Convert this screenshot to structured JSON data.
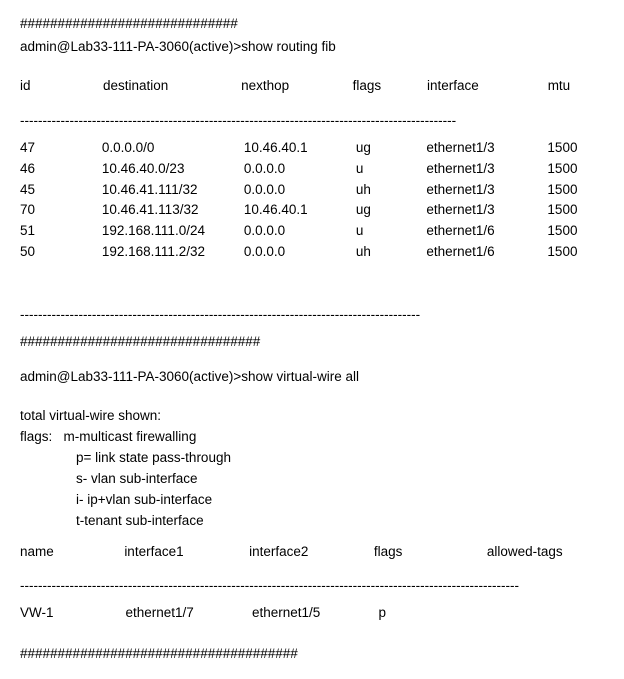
{
  "sep_hash_1": "#############################",
  "sep_hash_2": "################################",
  "sep_hash_3": "#####################################",
  "dash_mid": "-----------------------------------------------------------------------------------------",
  "dash_long_top": "-------------------------------------------------------------------------------------------------",
  "dash_long_bot": "---------------------------------------------------------------------------------------------------------------",
  "prompt1": "admin@Lab33-111-PA-3060(active)>show routing fib",
  "prompt2": "admin@Lab33-111-PA-3060(active)>show virtual-wire all",
  "fib": {
    "headers": {
      "id": "id",
      "destination": "destination",
      "nexthop": "nexthop",
      "flags": "flags",
      "interface": "interface",
      "mtu": "mtu"
    },
    "rows": [
      {
        "id": "47",
        "destination": "0.0.0.0/0",
        "nexthop": "10.46.40.1",
        "flags": "ug",
        "interface": "ethernet1/3",
        "mtu": "1500"
      },
      {
        "id": "46",
        "destination": "10.46.40.0/23",
        "nexthop": "0.0.0.0",
        "flags": "u",
        "interface": "ethernet1/3",
        "mtu": "1500"
      },
      {
        "id": "45",
        "destination": "10.46.41.111/32",
        "nexthop": "0.0.0.0",
        "flags": "uh",
        "interface": "ethernet1/3",
        "mtu": "1500"
      },
      {
        "id": "70",
        "destination": "10.46.41.113/32",
        "nexthop": "10.46.40.1",
        "flags": "ug",
        "interface": "ethernet1/3",
        "mtu": "1500"
      },
      {
        "id": "51",
        "destination": "192.168.111.0/24",
        "nexthop": "0.0.0.0",
        "flags": "u",
        "interface": "ethernet1/6",
        "mtu": "1500"
      },
      {
        "id": "50",
        "destination": "192.168.111.2/32",
        "nexthop": "0.0.0.0",
        "flags": "uh",
        "interface": "ethernet1/6",
        "mtu": "1500"
      }
    ]
  },
  "vw_total_label": "total virtual-wire shown:",
  "legend": {
    "prefix": "flags:",
    "m": "m-multicast firewalling",
    "p": "p= link state pass-through",
    "s": "s- vlan sub-interface",
    "i": "i- ip+vlan sub-interface",
    "t": "t-tenant sub-interface"
  },
  "vw": {
    "headers": {
      "name": "name",
      "if1": "interface1",
      "if2": "interface2",
      "flags": "flags",
      "tags": "allowed-tags"
    },
    "rows": [
      {
        "name": "VW-1",
        "if1": "ethernet1/7",
        "if2": "ethernet1/5",
        "flags": "p",
        "tags": ""
      }
    ]
  }
}
